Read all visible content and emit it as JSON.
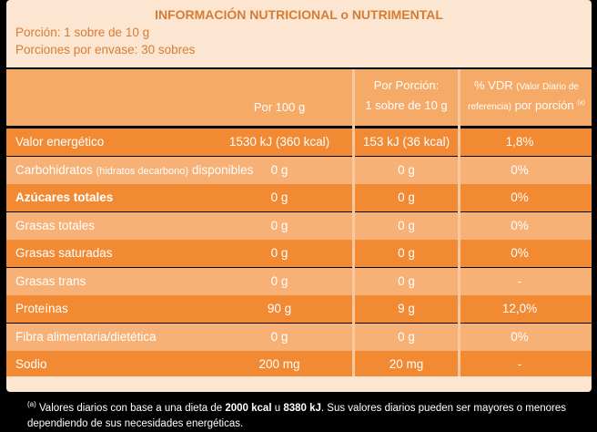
{
  "header": {
    "title": "INFORMACIÓN NUTRICIONAL o NUTRIMENTAL",
    "portion": "Porción: 1 sobre de 10 g",
    "servings": "Porciones por envase: 30 sobres"
  },
  "columns": {
    "per100": "Por 100 g",
    "perPortion_line1": "Por Porción:",
    "perPortion_line2": "1 sobre de 10 g",
    "vdr_line1": "% VDR",
    "vdr_line1_small": "(Valor Diario de",
    "vdr_line2_small": "referencia)",
    "vdr_line2": "por porción",
    "vdr_sup": "(a)"
  },
  "rows": [
    {
      "name": "Valor energético",
      "note": "",
      "bold": false,
      "per100": "1530 kJ (360 kcal)",
      "perPortion": "153 kJ (36 kcal)",
      "vdr": "1,8%"
    },
    {
      "name": "Carbohidratos",
      "note": "(hidratos decarbono)",
      "name_suffix": "disponibles",
      "bold": false,
      "per100": "0 g",
      "perPortion": "0 g",
      "vdr": "0%"
    },
    {
      "name": "Azúcares totales",
      "note": "",
      "bold": true,
      "per100": "0 g",
      "perPortion": "0 g",
      "vdr": "0%"
    },
    {
      "name": "Grasas totales",
      "note": "",
      "bold": false,
      "per100": "0 g",
      "perPortion": "0 g",
      "vdr": "0%"
    },
    {
      "name": "Grasas saturadas",
      "note": "",
      "bold": false,
      "per100": "0 g",
      "perPortion": "0 g",
      "vdr": "0%"
    },
    {
      "name": "Grasas trans",
      "note": "",
      "bold": false,
      "per100": "0 g",
      "perPortion": "0 g",
      "vdr": "-"
    },
    {
      "name": "Proteínas",
      "note": "",
      "bold": false,
      "per100": "90 g",
      "perPortion": "9 g",
      "vdr": "12,0%"
    },
    {
      "name": "Fibra alimentaria/dietética",
      "note": "",
      "bold": false,
      "per100": "0 g",
      "perPortion": "0 g",
      "vdr": "0%"
    },
    {
      "name": "Sodio",
      "note": "",
      "bold": false,
      "per100": "200 mg",
      "perPortion": "20 mg",
      "vdr": "-"
    }
  ],
  "footnote": {
    "mark": "(a)",
    "text_a": "Valores diarios con base a una dieta de ",
    "kcal": "2000 kcal",
    "text_b": " u ",
    "kj": "8380 kJ",
    "text_c": ". Sus valores diarios pueden ser mayores o menores dependiendo de sus necesidades energéticas."
  },
  "colors": {
    "dark_row": "#f18a33",
    "light_row": "#f7b075",
    "header_bg": "#fce6d2",
    "title_text": "#d77c33"
  }
}
